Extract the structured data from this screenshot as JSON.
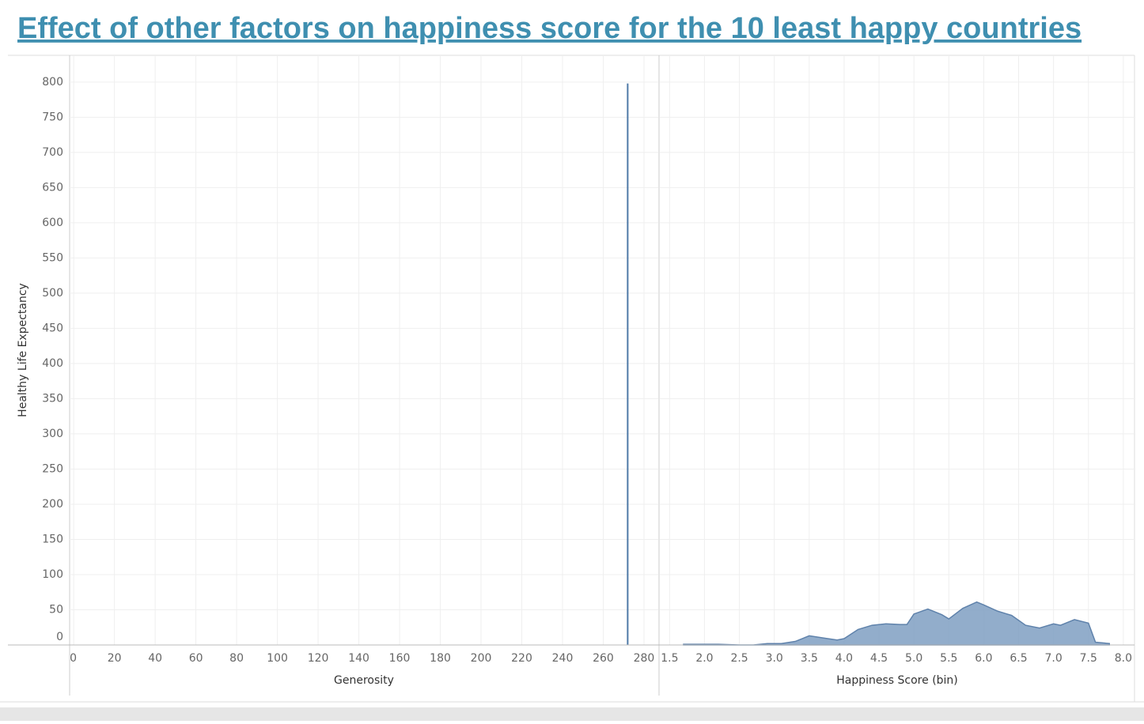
{
  "header": {
    "title": "Effect of other factors on happiness score for the 10 least happy countries"
  },
  "chart_data": [
    {
      "type": "line",
      "x_label": "Generosity",
      "y_label": "Healthy Life Expectancy",
      "xlim": [
        -2,
        287
      ],
      "xticks": [
        0,
        20,
        40,
        60,
        80,
        100,
        120,
        140,
        160,
        180,
        200,
        220,
        240,
        260,
        280
      ],
      "ylim": [
        0,
        838
      ],
      "yticks": [
        0,
        50,
        100,
        150,
        200,
        250,
        300,
        350,
        400,
        450,
        500,
        550,
        600,
        650,
        700,
        750,
        800
      ],
      "grid": true,
      "color": "#4e79a7",
      "x": [
        272,
        272
      ],
      "values": [
        0,
        798
      ]
    },
    {
      "type": "area",
      "x_label": "Happiness Score (bin)",
      "xlim": [
        1.36,
        8.16
      ],
      "xticks": [
        1.5,
        {
          "value": 2.0,
          "label": "2.0"
        },
        2.5,
        {
          "value": 3.0,
          "label": "3.0"
        },
        3.5,
        {
          "value": 4.0,
          "label": "4.0"
        },
        4.5,
        {
          "value": 5.0,
          "label": "5.0"
        },
        5.5,
        {
          "value": 6.0,
          "label": "6.0"
        },
        6.5,
        {
          "value": 7.0,
          "label": "7.0"
        },
        7.5,
        {
          "value": 8.0,
          "label": "8.0"
        }
      ],
      "ylim": [
        0,
        838
      ],
      "yticks": [
        0,
        50,
        100,
        150,
        200,
        250,
        300,
        350,
        400,
        450,
        500,
        550,
        600,
        650,
        700,
        750,
        800
      ],
      "grid": true,
      "color": "#7f9fc2",
      "x": [
        1.7,
        2.0,
        2.2,
        2.5,
        2.7,
        2.9,
        3.0,
        3.1,
        3.3,
        3.5,
        3.7,
        3.9,
        4.0,
        4.2,
        4.4,
        4.6,
        4.8,
        4.9,
        5.0,
        5.2,
        5.4,
        5.5,
        5.7,
        5.9,
        6.0,
        6.2,
        6.4,
        6.6,
        6.8,
        7.0,
        7.1,
        7.3,
        7.5,
        7.6,
        7.8
      ],
      "values": [
        1,
        1,
        1,
        0,
        0,
        2,
        2,
        2,
        5,
        13,
        10,
        7,
        9,
        22,
        28,
        30,
        29,
        29,
        44,
        51,
        43,
        37,
        52,
        61,
        57,
        48,
        42,
        28,
        24,
        30,
        28,
        36,
        31,
        4,
        2
      ]
    }
  ]
}
